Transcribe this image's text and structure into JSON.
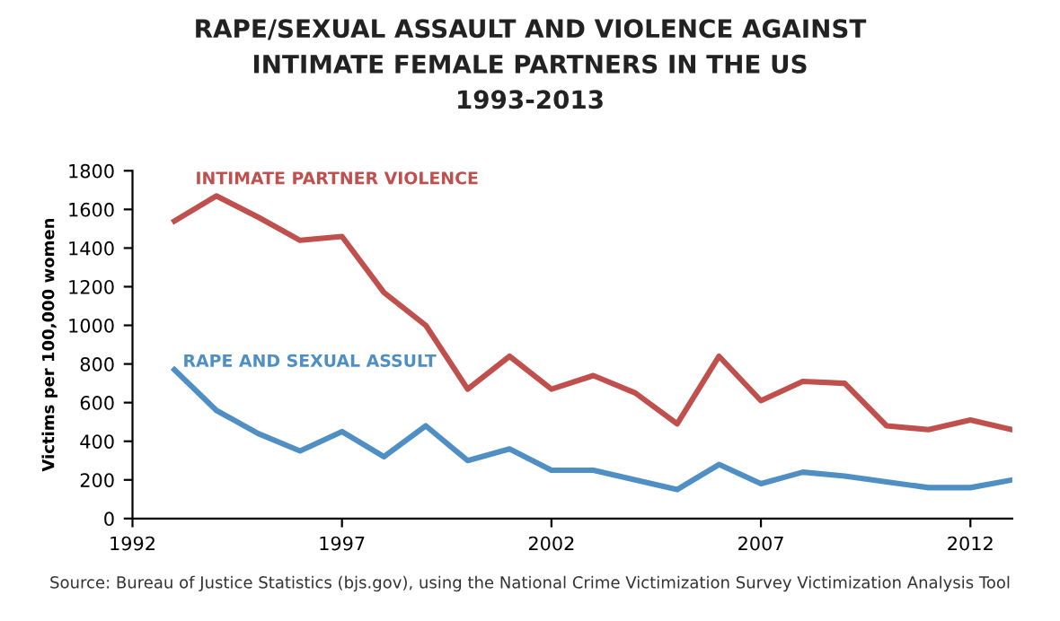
{
  "chart_data": {
    "type": "line",
    "title": "RAPE/SEXUAL ASSAULT AND VIOLENCE AGAINST\nINTIMATE FEMALE PARTNERS IN THE US\n1993-2013",
    "ylabel": "Victims per 100,000 women",
    "x": [
      1993,
      1994,
      1995,
      1996,
      1997,
      1998,
      1999,
      2000,
      2001,
      2002,
      2003,
      2004,
      2005,
      2006,
      2007,
      2008,
      2009,
      2010,
      2011,
      2012,
      2013
    ],
    "series": [
      {
        "name": "INTIMATE PARTNER VIOLENCE",
        "color": "#c0504d",
        "values": [
          1540,
          1670,
          1560,
          1440,
          1460,
          1170,
          1000,
          670,
          840,
          670,
          740,
          650,
          490,
          840,
          610,
          710,
          700,
          480,
          460,
          510,
          460
        ]
      },
      {
        "name": "RAPE AND SEXUAL ASSULT",
        "color": "#4f8fc4",
        "values": [
          770,
          560,
          440,
          350,
          450,
          320,
          480,
          300,
          360,
          250,
          250,
          200,
          150,
          280,
          180,
          240,
          220,
          190,
          160,
          160,
          200
        ]
      }
    ],
    "xlim": [
      1992,
      2013
    ],
    "xticks": [
      1992,
      1997,
      2002,
      2007,
      2012
    ],
    "ylim": [
      0,
      1800
    ],
    "yticks": [
      0,
      200,
      400,
      600,
      800,
      1000,
      1200,
      1400,
      1600,
      1800
    ],
    "grid": false,
    "legend": false,
    "annotations": [
      "Source: Bureau of Justice Statistics (bjs.gov), using the National Crime Victimization Survey Victimization Analysis Tool"
    ]
  }
}
